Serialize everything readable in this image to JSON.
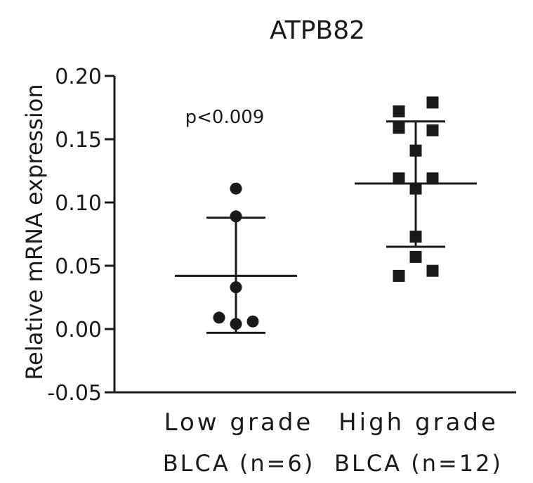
{
  "chart_data": {
    "type": "scatter",
    "title": "ATPB82",
    "xlabel": "",
    "ylabel": "Relative mRNA expression",
    "ylim": [
      -0.05,
      0.2
    ],
    "yticks": [
      "0.20",
      "0.15",
      "0.10",
      "0.05",
      "0.00",
      "-0.05"
    ],
    "ytick_values": [
      0.2,
      0.15,
      0.1,
      0.05,
      0.0,
      -0.05
    ],
    "annotation": "p<0.009",
    "grid": false,
    "categories": [
      {
        "line1": "Low grade",
        "line2": "BLCA (n=6)"
      },
      {
        "line1": "High grade",
        "line2": "BLCA (n=12)"
      }
    ],
    "series": [
      {
        "category_index": 0,
        "marker": "circle",
        "points": [
          {
            "jitter": 0,
            "y": 0.111
          },
          {
            "jitter": 0,
            "y": 0.089
          },
          {
            "jitter": 0,
            "y": 0.033
          },
          {
            "jitter": -1,
            "y": 0.009
          },
          {
            "jitter": 0,
            "y": 0.004
          },
          {
            "jitter": 1,
            "y": 0.006
          }
        ],
        "mean": 0.042,
        "sd_upper": 0.088,
        "sd_lower": -0.003
      },
      {
        "category_index": 1,
        "marker": "square",
        "points": [
          {
            "jitter": 1,
            "y": 0.179
          },
          {
            "jitter": -1,
            "y": 0.172
          },
          {
            "jitter": -1,
            "y": 0.159
          },
          {
            "jitter": 1,
            "y": 0.157
          },
          {
            "jitter": 0,
            "y": 0.141
          },
          {
            "jitter": -1,
            "y": 0.119
          },
          {
            "jitter": 1,
            "y": 0.119
          },
          {
            "jitter": 0,
            "y": 0.111
          },
          {
            "jitter": 0,
            "y": 0.073
          },
          {
            "jitter": 0,
            "y": 0.057
          },
          {
            "jitter": 1,
            "y": 0.046
          },
          {
            "jitter": -1,
            "y": 0.042
          }
        ],
        "mean": 0.115,
        "sd_upper": 0.164,
        "sd_lower": 0.065
      }
    ],
    "colors": {
      "marker": "#1a1a1a",
      "axis": "#1a1a1a",
      "text": "#1a1a1a"
    }
  }
}
